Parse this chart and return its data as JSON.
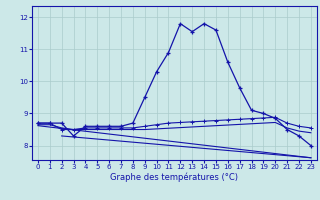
{
  "title": "Graphe des températures (°C)",
  "bg_color": "#cce8e8",
  "line_color": "#1414aa",
  "grid_color": "#aacccc",
  "x_ticks": [
    0,
    1,
    2,
    3,
    4,
    5,
    6,
    7,
    8,
    9,
    10,
    11,
    12,
    13,
    14,
    15,
    16,
    17,
    18,
    19,
    20,
    21,
    22,
    23
  ],
  "y_ticks": [
    8,
    9,
    10,
    11,
    12
  ],
  "ylim": [
    7.55,
    12.35
  ],
  "xlim": [
    -0.5,
    23.5
  ],
  "curve1_x": [
    0,
    1,
    2,
    3,
    4,
    5,
    6,
    7,
    8,
    9,
    10,
    11,
    12,
    13,
    14,
    15,
    16,
    17,
    18,
    19,
    20,
    21,
    22,
    23
  ],
  "curve1_y": [
    8.7,
    8.7,
    8.7,
    8.3,
    8.6,
    8.6,
    8.6,
    8.6,
    8.7,
    9.5,
    10.3,
    10.9,
    11.8,
    11.55,
    11.8,
    11.6,
    10.6,
    9.8,
    9.1,
    9.0,
    8.85,
    8.5,
    8.3,
    8.0
  ],
  "curve2_x": [
    0,
    1,
    2,
    3,
    4,
    5,
    6,
    7,
    8,
    9,
    10,
    11,
    12,
    13,
    14,
    15,
    16,
    17,
    18,
    19,
    20,
    21,
    22,
    23
  ],
  "curve2_y": [
    8.7,
    8.7,
    8.5,
    8.5,
    8.55,
    8.55,
    8.55,
    8.55,
    8.55,
    8.6,
    8.65,
    8.7,
    8.72,
    8.74,
    8.76,
    8.78,
    8.8,
    8.82,
    8.84,
    8.86,
    8.88,
    8.7,
    8.6,
    8.55
  ],
  "curve3_x": [
    0,
    1,
    2,
    3,
    4,
    5,
    6,
    7,
    8,
    9,
    10,
    11,
    12,
    13,
    14,
    15,
    16,
    17,
    18,
    19,
    20,
    21,
    22,
    23
  ],
  "curve3_y": [
    8.65,
    8.65,
    8.55,
    8.5,
    8.5,
    8.5,
    8.5,
    8.5,
    8.5,
    8.5,
    8.52,
    8.54,
    8.56,
    8.58,
    8.6,
    8.62,
    8.64,
    8.66,
    8.68,
    8.7,
    8.72,
    8.55,
    8.45,
    8.4
  ],
  "curve4_x": [
    0,
    23
  ],
  "curve4_y": [
    8.62,
    7.62
  ],
  "curve5_x": [
    2,
    23
  ],
  "curve5_y": [
    8.3,
    7.62
  ]
}
